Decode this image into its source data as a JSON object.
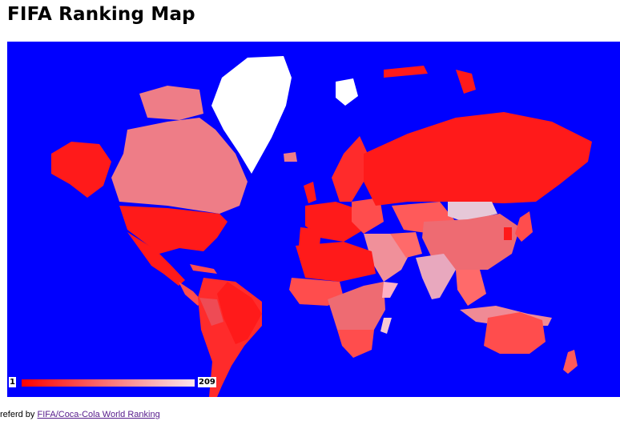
{
  "page": {
    "title": "FIFA Ranking Map"
  },
  "legend": {
    "min": "1",
    "max": "209",
    "low_color": "#ff0000",
    "high_color": "#ffe6ee"
  },
  "map": {
    "ocean_color": "#0000ff",
    "no_data_color": "#ffffff"
  },
  "footer": {
    "prefix": "referd by ",
    "link_text": "FIFA/Coca-Cola World Ranking"
  }
}
